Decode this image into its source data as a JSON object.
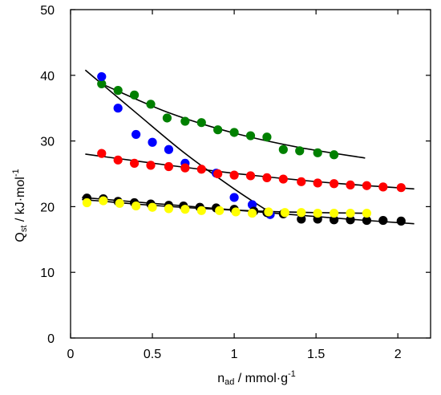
{
  "chart_data": {
    "type": "scatter",
    "title": "",
    "xlabel": {
      "main": "n",
      "sub": "ad",
      "rest": " / mmol·g",
      "sup": "-1"
    },
    "ylabel": {
      "main": "Q",
      "sub": "st",
      "rest": " / kJ·mol",
      "sup": "-1"
    },
    "xlim": [
      0,
      2.2
    ],
    "ylim": [
      0,
      50
    ],
    "xticks": [
      0,
      0.5,
      1,
      1.5,
      2
    ],
    "xtick_labels": [
      "0",
      "0.5",
      "1",
      "1.5",
      "2"
    ],
    "yticks": [
      0,
      10,
      20,
      30,
      40,
      50
    ],
    "ytick_labels": [
      "0",
      "10",
      "20",
      "30",
      "40",
      "50"
    ],
    "grid": false,
    "series": [
      {
        "color": "#008000",
        "points": [
          [
            0.19,
            38.7
          ],
          [
            0.29,
            37.7
          ],
          [
            0.39,
            37.0
          ],
          [
            0.49,
            35.6
          ],
          [
            0.59,
            33.5
          ],
          [
            0.7,
            33.0
          ],
          [
            0.8,
            32.8
          ],
          [
            0.9,
            31.7
          ],
          [
            1.0,
            31.3
          ],
          [
            1.1,
            30.8
          ],
          [
            1.2,
            30.6
          ],
          [
            1.3,
            28.7
          ],
          [
            1.4,
            28.5
          ],
          [
            1.51,
            28.2
          ],
          [
            1.61,
            27.9
          ]
        ],
        "fit": [
          [
            0.19,
            38.7
          ],
          [
            0.6,
            34.3
          ],
          [
            1.0,
            31.2
          ],
          [
            1.4,
            29.0
          ],
          [
            1.8,
            27.4
          ]
        ]
      },
      {
        "color": "#0000ff",
        "points": [
          [
            0.19,
            39.8
          ],
          [
            0.29,
            35.0
          ],
          [
            0.4,
            31.0
          ],
          [
            0.5,
            29.8
          ],
          [
            0.6,
            28.7
          ],
          [
            0.7,
            26.6
          ],
          [
            0.89,
            25.1
          ],
          [
            1.0,
            21.4
          ],
          [
            1.11,
            20.3
          ],
          [
            1.22,
            18.8
          ]
        ],
        "fit": [
          [
            0.09,
            40.8
          ],
          [
            0.4,
            34.3
          ],
          [
            0.7,
            28.1
          ],
          [
            1.0,
            22.7
          ],
          [
            1.22,
            19.1
          ]
        ]
      },
      {
        "color": "#ff0000",
        "points": [
          [
            0.19,
            28.1
          ],
          [
            0.29,
            27.1
          ],
          [
            0.39,
            26.6
          ],
          [
            0.49,
            26.3
          ],
          [
            0.6,
            26.1
          ],
          [
            0.7,
            25.9
          ],
          [
            0.8,
            25.7
          ],
          [
            0.9,
            25.0
          ],
          [
            1.0,
            24.8
          ],
          [
            1.1,
            24.7
          ],
          [
            1.2,
            24.4
          ],
          [
            1.3,
            24.2
          ],
          [
            1.41,
            23.8
          ],
          [
            1.51,
            23.6
          ],
          [
            1.61,
            23.5
          ],
          [
            1.71,
            23.3
          ],
          [
            1.81,
            23.2
          ],
          [
            1.91,
            23.0
          ],
          [
            2.02,
            22.9
          ]
        ],
        "fit": [
          [
            0.09,
            28.0
          ],
          [
            0.6,
            26.3
          ],
          [
            1.1,
            24.8
          ],
          [
            1.6,
            23.6
          ],
          [
            2.1,
            22.7
          ]
        ]
      },
      {
        "color": "#000000",
        "points": [
          [
            0.1,
            21.3
          ],
          [
            0.2,
            21.2
          ],
          [
            0.29,
            20.8
          ],
          [
            0.39,
            20.6
          ],
          [
            0.49,
            20.4
          ],
          [
            0.6,
            20.2
          ],
          [
            0.69,
            20.1
          ],
          [
            0.79,
            19.9
          ],
          [
            0.89,
            19.8
          ],
          [
            1.0,
            19.6
          ],
          [
            1.12,
            19.3
          ],
          [
            1.2,
            19.1
          ],
          [
            1.3,
            18.9
          ],
          [
            1.41,
            18.1
          ],
          [
            1.51,
            18.1
          ],
          [
            1.61,
            18.0
          ],
          [
            1.71,
            18.0
          ],
          [
            1.81,
            17.9
          ],
          [
            1.91,
            17.9
          ],
          [
            2.02,
            17.8
          ]
        ],
        "fit": [
          [
            0.07,
            21.4
          ],
          [
            0.7,
            20.1
          ],
          [
            1.3,
            18.9
          ],
          [
            1.7,
            18.1
          ],
          [
            2.1,
            17.4
          ]
        ]
      },
      {
        "color": "#ffff00",
        "points": [
          [
            0.1,
            20.6
          ],
          [
            0.2,
            20.9
          ],
          [
            0.3,
            20.5
          ],
          [
            0.4,
            20.1
          ],
          [
            0.5,
            19.9
          ],
          [
            0.6,
            19.7
          ],
          [
            0.7,
            19.6
          ],
          [
            0.8,
            19.4
          ],
          [
            0.91,
            19.4
          ],
          [
            1.01,
            19.2
          ],
          [
            1.11,
            19.0
          ],
          [
            1.21,
            19.2
          ],
          [
            1.31,
            19.1
          ],
          [
            1.41,
            19.1
          ],
          [
            1.51,
            19.0
          ],
          [
            1.61,
            19.0
          ],
          [
            1.71,
            19.0
          ],
          [
            1.81,
            19.0
          ]
        ],
        "fit": [
          [
            0.07,
            21.1
          ],
          [
            0.5,
            20.2
          ],
          [
            0.9,
            19.6
          ],
          [
            1.3,
            19.2
          ],
          [
            1.8,
            19.0
          ]
        ]
      }
    ]
  }
}
